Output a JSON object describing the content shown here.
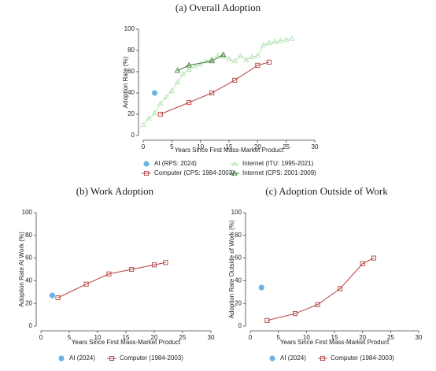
{
  "chart_data": [
    {
      "type": "line",
      "title": "(a) Overall Adoption",
      "x_label": "Years Since First Mass-Market Product",
      "y_label": "Adoption Rate (%)",
      "xlim": [
        0,
        30
      ],
      "xticks": [
        0,
        5,
        10,
        15,
        20,
        25,
        30
      ],
      "ylim": [
        0,
        100
      ],
      "yticks": [
        0,
        20,
        40,
        60,
        80,
        100
      ],
      "legend": "bottom",
      "series": [
        {
          "name": "AI (RPS: 2024)",
          "color": "#6cb4e4",
          "marker": "circle",
          "x": [
            2
          ],
          "values": [
            40
          ]
        },
        {
          "name": "Computer (CPS: 1984-2003)",
          "color": "#b5403f",
          "marker": "square",
          "x": [
            3,
            8,
            12,
            16,
            20,
            22
          ],
          "values": [
            20,
            31,
            40,
            52,
            66,
            69
          ]
        },
        {
          "name": "Internet (ITU: 1995-2021)",
          "color": "#b9e4b6",
          "marker": "triangle",
          "x": [
            0,
            1,
            2,
            3,
            4,
            5,
            6,
            7,
            8,
            9,
            10,
            11,
            12,
            13,
            14,
            15,
            16,
            17,
            18,
            19,
            20,
            21,
            22,
            23,
            24,
            25,
            26
          ],
          "values": [
            10,
            16,
            21,
            30,
            36,
            42,
            50,
            58,
            62,
            65,
            67,
            70,
            72,
            75,
            74,
            72,
            70,
            75,
            71,
            74,
            75,
            85,
            87,
            88,
            89,
            90,
            91
          ]
        },
        {
          "name": "Internet (CPS: 2001-2009)",
          "color": "#3f7a3a",
          "marker": "triangle",
          "x": [
            6,
            8,
            12,
            14
          ],
          "values": [
            61,
            66,
            70,
            76
          ]
        }
      ]
    },
    {
      "type": "line",
      "title": "(b) Work Adoption",
      "x_label": "Years Since First Mass-Market Product",
      "y_label": "Adoption Rate At Work (%)",
      "xlim": [
        0,
        30
      ],
      "xticks": [
        0,
        5,
        10,
        15,
        20,
        25,
        30
      ],
      "ylim": [
        0,
        100
      ],
      "yticks": [
        0,
        20,
        40,
        60,
        80,
        100
      ],
      "legend": "bottom",
      "series": [
        {
          "name": "AI (2024)",
          "color": "#6cb4e4",
          "marker": "circle",
          "x": [
            2
          ],
          "values": [
            27
          ]
        },
        {
          "name": "Computer (1984-2003)",
          "color": "#b5403f",
          "marker": "square",
          "x": [
            3,
            8,
            12,
            16,
            20,
            22
          ],
          "values": [
            25,
            37,
            46,
            50,
            54,
            56
          ]
        }
      ]
    },
    {
      "type": "line",
      "title": "(c) Adoption Outside of Work",
      "x_label": "Years Since First Mass-Market Product",
      "y_label": "Adoption Rate Outside of Work (%)",
      "xlim": [
        0,
        30
      ],
      "xticks": [
        0,
        5,
        10,
        15,
        20,
        25,
        30
      ],
      "ylim": [
        0,
        100
      ],
      "yticks": [
        0,
        20,
        40,
        60,
        80,
        100
      ],
      "legend": "bottom",
      "series": [
        {
          "name": "AI (2024)",
          "color": "#6cb4e4",
          "marker": "circle",
          "x": [
            2
          ],
          "values": [
            34
          ]
        },
        {
          "name": "Computer (1984-2003)",
          "color": "#b5403f",
          "marker": "square",
          "x": [
            3,
            8,
            12,
            16,
            20,
            22
          ],
          "values": [
            5,
            11,
            19,
            33,
            55,
            60
          ]
        }
      ]
    }
  ]
}
